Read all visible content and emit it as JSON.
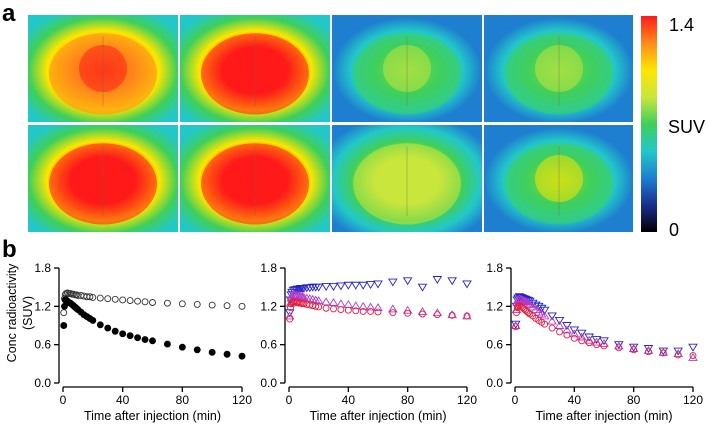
{
  "figure": {
    "panel_a_label": "a",
    "panel_b_label": "b"
  },
  "panel_a": {
    "rows": 2,
    "columns": 4,
    "colorbar": {
      "max_label": "1.4",
      "min_label": "0",
      "title": "SUV",
      "colors": [
        "#000000",
        "#1a2f8f",
        "#1e7fd0",
        "#22c8c8",
        "#3fcf5a",
        "#c8e63c",
        "#ffe600",
        "#ff8a1a",
        "#ff1a1a"
      ]
    },
    "images": [
      {
        "intensity": 0.92,
        "focal": 0.95
      },
      {
        "intensity": 0.96,
        "focal": 0.98
      },
      {
        "intensity": 0.55,
        "focal": 0.62
      },
      {
        "intensity": 0.5,
        "focal": 0.6
      },
      {
        "intensity": 0.94,
        "focal": 0.97
      },
      {
        "intensity": 0.98,
        "focal": 1.0
      },
      {
        "intensity": 0.58,
        "focal": 0.66
      },
      {
        "intensity": 0.56,
        "focal": 0.72
      }
    ]
  },
  "chart_data": [
    {
      "type": "scatter",
      "title": "",
      "xlabel": "Time after injection (min)",
      "ylabel_lines": [
        "Conc radioactivity",
        "(SUV)"
      ],
      "xlim": [
        0,
        120
      ],
      "ylim": [
        0,
        1.8
      ],
      "xticks": [
        "0",
        "40",
        "80",
        "120"
      ],
      "yticks": [
        "0.0",
        "0.6",
        "1.2",
        "1.8"
      ],
      "series": [
        {
          "name": "open-circles",
          "marker": "circle",
          "filled": false,
          "color": "#333333",
          "x": [
            0.5,
            1,
            1.5,
            2,
            3,
            4,
            5,
            6,
            7,
            8,
            9,
            10,
            12,
            14,
            16,
            18,
            20,
            25,
            30,
            35,
            40,
            45,
            50,
            55,
            60,
            70,
            80,
            90,
            100,
            110,
            120
          ],
          "y": [
            1.1,
            1.32,
            1.38,
            1.4,
            1.41,
            1.4,
            1.4,
            1.39,
            1.39,
            1.38,
            1.38,
            1.37,
            1.37,
            1.36,
            1.35,
            1.35,
            1.34,
            1.33,
            1.32,
            1.31,
            1.3,
            1.29,
            1.28,
            1.27,
            1.26,
            1.25,
            1.24,
            1.23,
            1.22,
            1.21,
            1.2
          ]
        },
        {
          "name": "filled-circles",
          "marker": "circle",
          "filled": true,
          "color": "#000000",
          "x": [
            0.5,
            1,
            1.5,
            2,
            3,
            4,
            5,
            6,
            7,
            8,
            9,
            10,
            12,
            14,
            16,
            18,
            20,
            25,
            30,
            35,
            40,
            45,
            50,
            55,
            60,
            70,
            80,
            90,
            100,
            110,
            120
          ],
          "y": [
            0.9,
            1.2,
            1.3,
            1.3,
            1.28,
            1.26,
            1.25,
            1.23,
            1.21,
            1.19,
            1.17,
            1.15,
            1.11,
            1.07,
            1.04,
            1.01,
            0.98,
            0.91,
            0.86,
            0.81,
            0.77,
            0.74,
            0.71,
            0.68,
            0.66,
            0.61,
            0.56,
            0.52,
            0.48,
            0.45,
            0.42
          ]
        }
      ]
    },
    {
      "type": "scatter",
      "title": "",
      "xlabel": "Time after injection (min)",
      "xlim": [
        0,
        120
      ],
      "ylim": [
        0,
        1.8
      ],
      "xticks": [
        "0",
        "40",
        "80",
        "120"
      ],
      "yticks": [
        "0.0",
        "0.6",
        "1.2",
        "1.8"
      ],
      "series": [
        {
          "name": "blue-down-triangles",
          "marker": "triangle-down",
          "filled": false,
          "color": "#2323c8",
          "x": [
            0.5,
            1,
            1.5,
            2,
            3,
            4,
            5,
            6,
            7,
            8,
            9,
            10,
            12,
            14,
            16,
            18,
            20,
            25,
            30,
            35,
            40,
            45,
            50,
            55,
            60,
            70,
            80,
            90,
            100,
            110,
            120
          ],
          "y": [
            1.1,
            1.3,
            1.38,
            1.42,
            1.45,
            1.46,
            1.46,
            1.47,
            1.47,
            1.48,
            1.48,
            1.48,
            1.49,
            1.49,
            1.5,
            1.5,
            1.5,
            1.51,
            1.51,
            1.52,
            1.53,
            1.53,
            1.53,
            1.54,
            1.55,
            1.58,
            1.6,
            1.5,
            1.62,
            1.6,
            1.55
          ]
        },
        {
          "name": "magenta-up-triangles",
          "marker": "triangle-up",
          "filled": false,
          "color": "#b43cc8",
          "x": [
            0.5,
            1,
            1.5,
            2,
            3,
            4,
            5,
            6,
            7,
            8,
            9,
            10,
            12,
            14,
            16,
            18,
            20,
            25,
            30,
            35,
            40,
            45,
            50,
            55,
            60,
            70,
            80,
            90,
            100,
            110,
            120
          ],
          "y": [
            1.05,
            1.25,
            1.33,
            1.36,
            1.38,
            1.38,
            1.37,
            1.37,
            1.36,
            1.36,
            1.35,
            1.34,
            1.33,
            1.32,
            1.31,
            1.3,
            1.29,
            1.27,
            1.26,
            1.24,
            1.23,
            1.21,
            1.2,
            1.19,
            1.18,
            1.16,
            1.14,
            1.12,
            1.1,
            1.07,
            1.05
          ]
        },
        {
          "name": "red-circles",
          "marker": "circle",
          "filled": false,
          "color": "#e61e3c",
          "x": [
            0.5,
            1,
            1.5,
            2,
            3,
            4,
            5,
            6,
            7,
            8,
            9,
            10,
            12,
            14,
            16,
            18,
            20,
            25,
            30,
            35,
            40,
            45,
            50,
            55,
            60,
            70,
            80,
            90,
            100,
            110,
            120
          ],
          "y": [
            1.0,
            1.18,
            1.24,
            1.26,
            1.27,
            1.27,
            1.26,
            1.26,
            1.25,
            1.25,
            1.24,
            1.24,
            1.23,
            1.22,
            1.21,
            1.2,
            1.19,
            1.17,
            1.16,
            1.15,
            1.14,
            1.13,
            1.12,
            1.12,
            1.11,
            1.1,
            1.09,
            1.08,
            1.07,
            1.06,
            1.05
          ]
        }
      ]
    },
    {
      "type": "scatter",
      "title": "",
      "xlabel": "Time after injection (min)",
      "xlim": [
        0,
        120
      ],
      "ylim": [
        0,
        1.8
      ],
      "xticks": [
        "0",
        "40",
        "80",
        "120"
      ],
      "yticks": [
        "0.0",
        "0.6",
        "1.2",
        "1.8"
      ],
      "series": [
        {
          "name": "blue-down-triangles",
          "marker": "triangle-down",
          "filled": false,
          "color": "#2323c8",
          "x": [
            0.5,
            1,
            1.5,
            2,
            3,
            4,
            5,
            6,
            7,
            8,
            9,
            10,
            12,
            14,
            16,
            18,
            20,
            25,
            30,
            35,
            40,
            45,
            50,
            55,
            60,
            70,
            80,
            90,
            100,
            110,
            120
          ],
          "y": [
            0.92,
            1.2,
            1.3,
            1.33,
            1.35,
            1.34,
            1.33,
            1.32,
            1.31,
            1.3,
            1.29,
            1.28,
            1.25,
            1.22,
            1.2,
            1.17,
            1.14,
            1.05,
            0.98,
            0.9,
            0.83,
            0.78,
            0.72,
            0.68,
            0.66,
            0.6,
            0.56,
            0.54,
            0.5,
            0.5,
            0.56
          ]
        },
        {
          "name": "magenta-up-triangles",
          "marker": "triangle-up",
          "filled": false,
          "color": "#b43cc8",
          "x": [
            0.5,
            1,
            1.5,
            2,
            3,
            4,
            5,
            6,
            7,
            8,
            9,
            10,
            12,
            14,
            16,
            18,
            20,
            25,
            30,
            35,
            40,
            45,
            50,
            55,
            60,
            70,
            80,
            90,
            100,
            110,
            120
          ],
          "y": [
            0.9,
            1.15,
            1.26,
            1.3,
            1.32,
            1.31,
            1.3,
            1.29,
            1.28,
            1.27,
            1.25,
            1.23,
            1.19,
            1.15,
            1.11,
            1.08,
            1.05,
            0.97,
            0.9,
            0.83,
            0.77,
            0.72,
            0.67,
            0.64,
            0.62,
            0.58,
            0.54,
            0.51,
            0.48,
            0.46,
            0.4
          ]
        },
        {
          "name": "red-circles",
          "marker": "circle",
          "filled": false,
          "color": "#e61e3c",
          "x": [
            0.5,
            1,
            1.5,
            2,
            3,
            4,
            5,
            6,
            7,
            8,
            9,
            10,
            12,
            14,
            16,
            18,
            20,
            25,
            30,
            35,
            40,
            45,
            50,
            55,
            60,
            70,
            80,
            90,
            100,
            110,
            120
          ],
          "y": [
            0.88,
            1.1,
            1.18,
            1.2,
            1.21,
            1.2,
            1.18,
            1.16,
            1.14,
            1.12,
            1.1,
            1.08,
            1.05,
            1.01,
            0.98,
            0.95,
            0.92,
            0.86,
            0.8,
            0.75,
            0.7,
            0.66,
            0.63,
            0.6,
            0.58,
            0.55,
            0.52,
            0.49,
            0.47,
            0.44,
            0.43
          ]
        }
      ]
    }
  ]
}
